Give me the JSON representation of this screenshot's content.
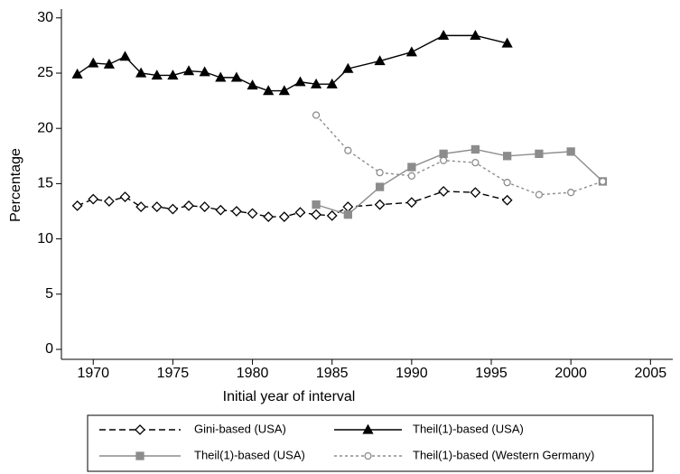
{
  "chart_data": {
    "type": "line",
    "x_label": "Initial year of interval",
    "y_label": "Percentage",
    "xlim": [
      1968,
      2006.4
    ],
    "ylim": [
      -0.9,
      30.8
    ],
    "xticks": [
      1970,
      1975,
      1980,
      1985,
      1990,
      1995,
      2000,
      2005
    ],
    "yticks": [
      0,
      5,
      10,
      15,
      20,
      25,
      30
    ],
    "series": [
      {
        "name": "Gini-based (USA)",
        "color": "#000000",
        "dash": "dashed",
        "marker": "diamond-open",
        "x": [
          1969,
          1970,
          1971,
          1972,
          1973,
          1974,
          1975,
          1976,
          1977,
          1978,
          1979,
          1980,
          1981,
          1982,
          1983,
          1984,
          1985,
          1986,
          1988,
          1990,
          1992,
          1994,
          1996
        ],
        "values": [
          13.0,
          13.6,
          13.4,
          13.8,
          12.9,
          12.9,
          12.7,
          13.0,
          12.9,
          12.6,
          12.5,
          12.3,
          12.0,
          12.0,
          12.4,
          12.2,
          12.1,
          12.9,
          13.1,
          13.3,
          14.3,
          14.2,
          13.5
        ]
      },
      {
        "name": "Theil(1)-based (USA)",
        "color": "#000000",
        "dash": "solid",
        "marker": "triangle-filled",
        "x": [
          1969,
          1970,
          1971,
          1972,
          1973,
          1974,
          1975,
          1976,
          1977,
          1978,
          1979,
          1980,
          1981,
          1982,
          1983,
          1984,
          1985,
          1986,
          1988,
          1990,
          1992,
          1994,
          1996
        ],
        "values": [
          24.9,
          25.9,
          25.8,
          26.5,
          25.0,
          24.8,
          24.8,
          25.2,
          25.1,
          24.6,
          24.6,
          23.9,
          23.4,
          23.4,
          24.2,
          24.0,
          24.0,
          25.4,
          26.1,
          26.9,
          28.4,
          28.4,
          27.7
        ]
      },
      {
        "name": "Theil(1)-based (USA)",
        "color": "#8c8c8c",
        "dash": "solid",
        "marker": "square-filled",
        "x": [
          1984,
          1986,
          1988,
          1990,
          1992,
          1994,
          1996,
          1998,
          2000,
          2002
        ],
        "values": [
          13.1,
          12.2,
          14.7,
          16.5,
          17.7,
          18.1,
          17.5,
          17.7,
          17.9,
          15.2
        ]
      },
      {
        "name": "Theil(1)-based (Western Germany)",
        "color": "#8c8c8c",
        "dash": "dotted",
        "marker": "circle-open",
        "x": [
          1984,
          1986,
          1988,
          1990,
          1992,
          1994,
          1996,
          1998,
          2000,
          2002
        ],
        "values": [
          21.2,
          18.0,
          16.0,
          15.7,
          17.1,
          16.9,
          15.1,
          14.0,
          14.2,
          15.2
        ]
      }
    ]
  }
}
